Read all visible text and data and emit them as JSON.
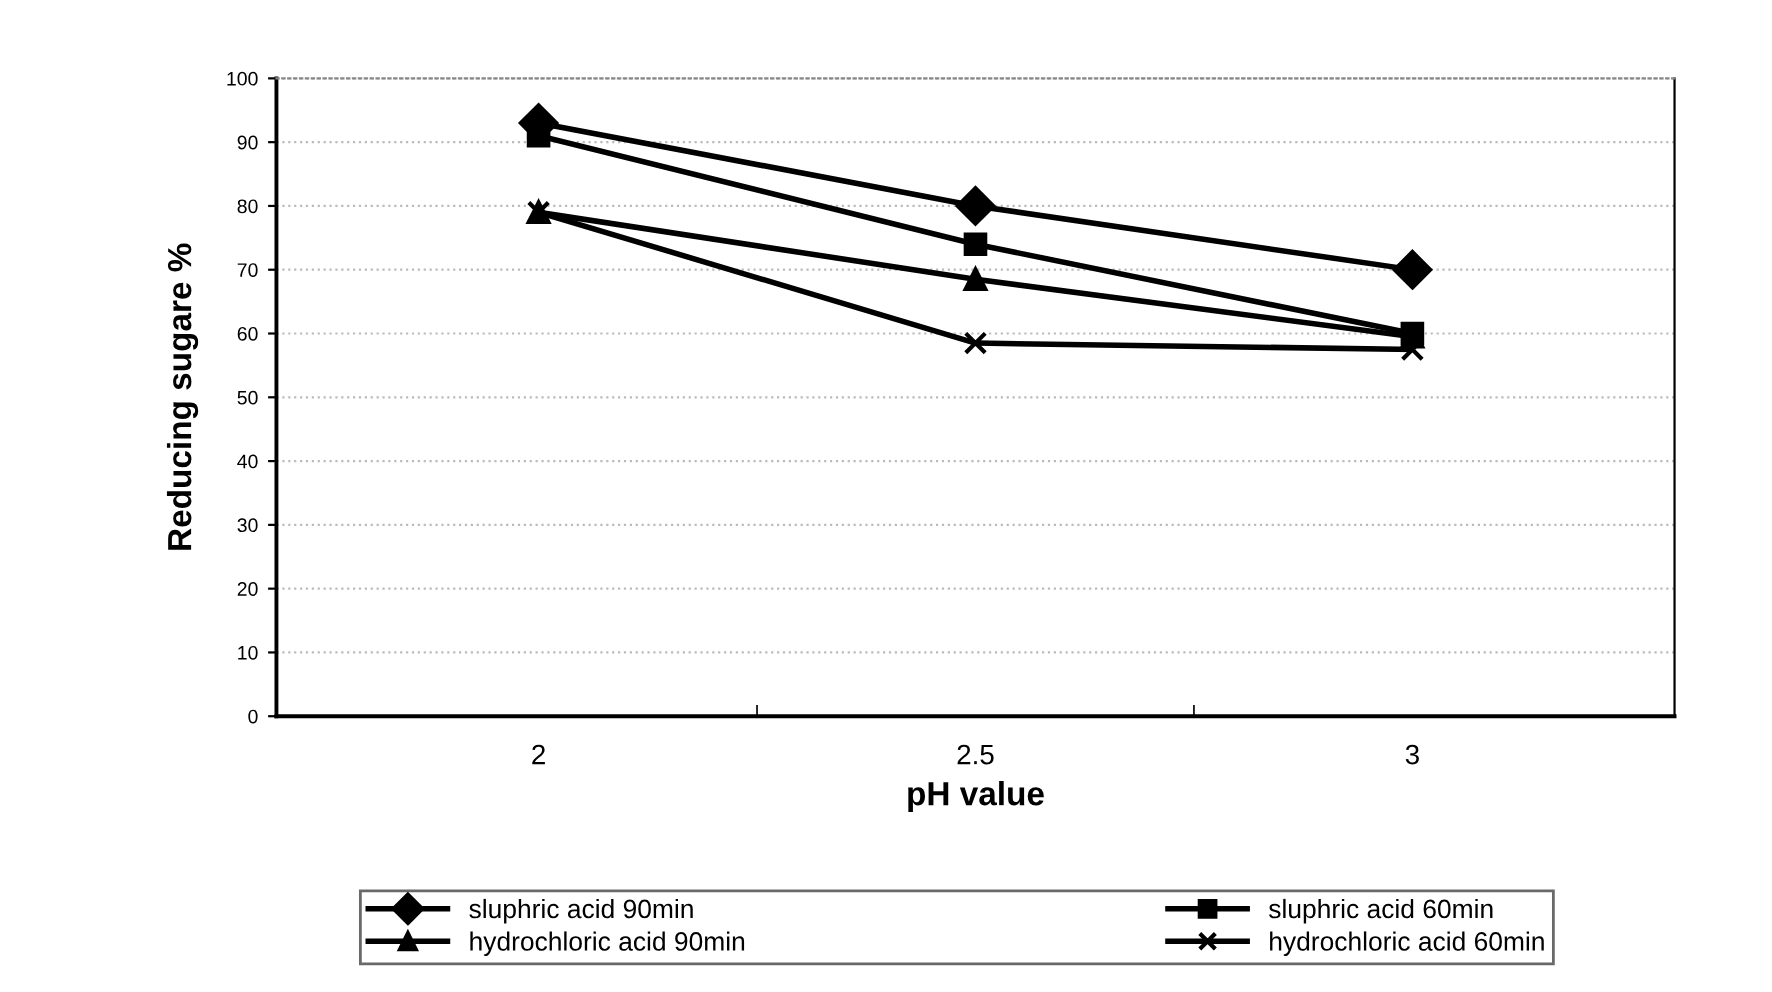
{
  "chart_data": {
    "type": "line",
    "xlabel": "pH value",
    "ylabel": "Reducing sugare %",
    "categories": [
      "2",
      "2.5",
      "3"
    ],
    "series": [
      {
        "name": "sluphric acid 90min",
        "color": "#000000",
        "marker": "diamond",
        "values": [
          93,
          80,
          70
        ]
      },
      {
        "name": "sluphric acid 60min",
        "color": "#000000",
        "marker": "square",
        "values": [
          91,
          74,
          60
        ]
      },
      {
        "name": "hydrochloric acid 90min",
        "color": "#000000",
        "marker": "triangle",
        "values": [
          79,
          68.5,
          59.5
        ]
      },
      {
        "name": "hydrochloric acid 60min",
        "color": "#000000",
        "marker": "cross",
        "values": [
          79,
          58.5,
          57.5
        ]
      }
    ],
    "ylim": [
      0,
      100
    ],
    "yticks": [
      0,
      10,
      20,
      30,
      40,
      50,
      60,
      70,
      80,
      90,
      100
    ],
    "grid": "y",
    "legend": "bottom",
    "line_style": "solid"
  }
}
